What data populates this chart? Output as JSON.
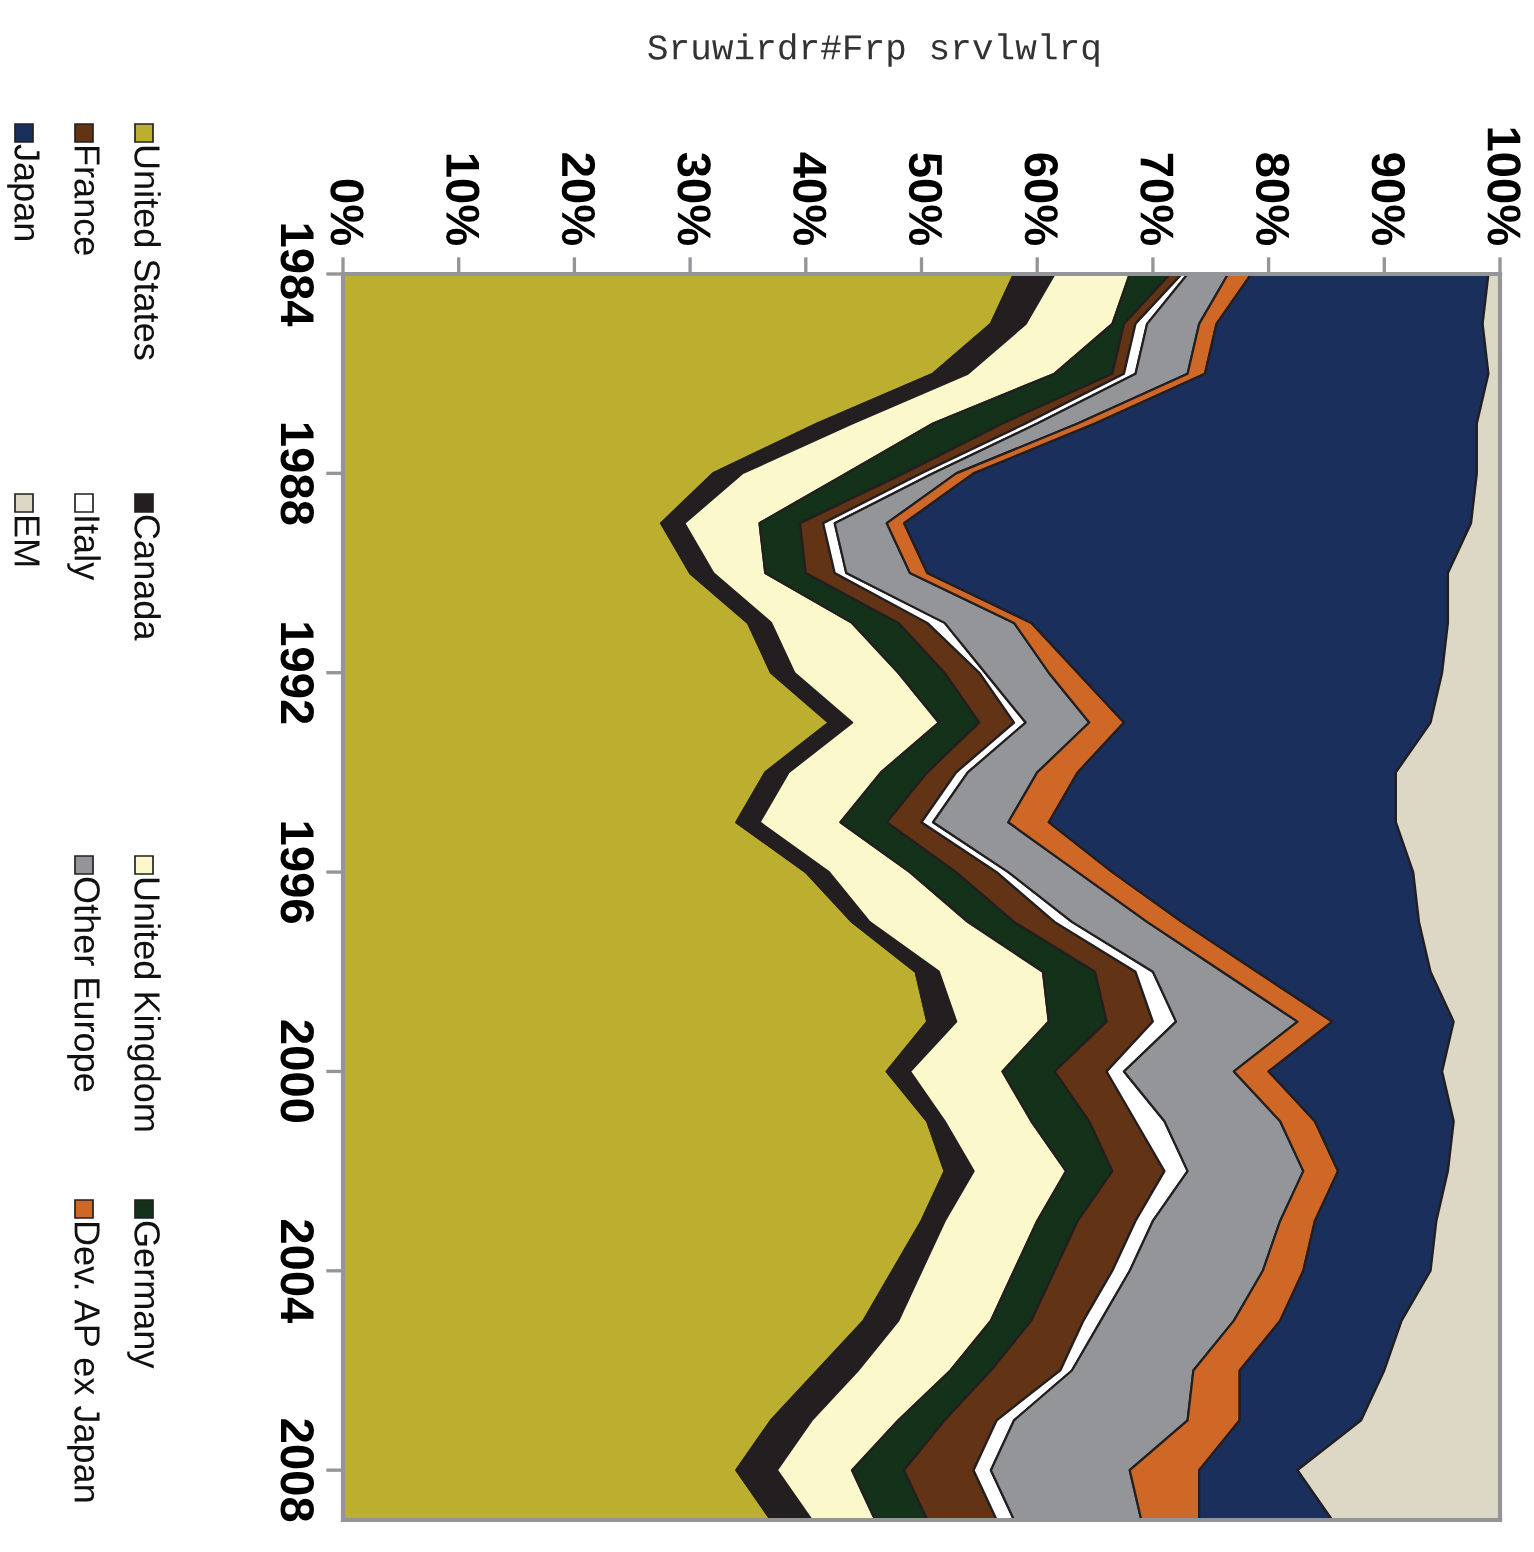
{
  "chart_data": {
    "type": "area",
    "title": "Sruwirdr#Frp srvlwlrq",
    "stacked": true,
    "orientation": "horizontal",
    "legend": "left",
    "grid": false,
    "categories": [
      "1984",
      null,
      null,
      null,
      "1988",
      null,
      null,
      null,
      "1992",
      null,
      null,
      null,
      "1996",
      null,
      null,
      null,
      "2000",
      null,
      null,
      null,
      "2004",
      null,
      null,
      null,
      "2008",
      null
    ],
    "xlim": [
      0,
      100
    ],
    "xticks": [
      {
        "value": 0,
        "label": "0%"
      },
      {
        "value": 10,
        "label": "10%"
      },
      {
        "value": 20,
        "label": "20%"
      },
      {
        "value": 30,
        "label": "30%"
      },
      {
        "value": 40,
        "label": "40%"
      },
      {
        "value": 50,
        "label": "50%"
      },
      {
        "value": 60,
        "label": "60%"
      },
      {
        "value": 70,
        "label": "70%"
      },
      {
        "value": 80,
        "label": "80%"
      },
      {
        "value": 90,
        "label": "90%"
      },
      {
        "value": 100,
        "label": "100%"
      }
    ],
    "series": [
      {
        "name": "United States",
        "color": "#bcaf2f",
        "values": [
          58,
          56,
          51,
          41,
          32,
          27.5,
          30,
          35,
          37,
          42,
          36.5,
          34,
          40,
          44,
          49.5,
          50.5,
          47,
          50.5,
          52,
          50,
          47.5,
          45,
          41,
          37,
          34,
          37
        ]
      },
      {
        "name": "Canada",
        "color": "#231f20",
        "values": [
          3.5,
          3,
          3,
          3,
          2.5,
          2,
          2,
          2,
          2,
          2,
          2,
          2,
          2,
          1.5,
          2,
          2.5,
          2,
          1.5,
          2.5,
          2,
          2.5,
          3,
          3.5,
          3.5,
          3.5,
          3.5
        ]
      },
      {
        "name": "United Kingdom",
        "color": "#fbf8cc",
        "values": [
          6.5,
          7.5,
          7.5,
          7,
          9,
          6.5,
          4.5,
          7,
          9,
          7.5,
          8,
          7,
          7,
          8.5,
          9,
          8,
          8,
          7.5,
          8,
          8,
          8,
          8,
          8,
          7.5,
          6.5,
          5.5
        ]
      },
      {
        "name": "Germany",
        "color": "#14321a",
        "values": [
          3.5,
          1,
          5,
          6,
          5,
          3.5,
          3.5,
          4,
          4,
          3.5,
          4,
          4,
          4,
          4,
          4.5,
          5,
          4.5,
          5,
          4,
          3.5,
          3.5,
          3.5,
          3.5,
          4,
          4.5,
          4.5
        ]
      },
      {
        "name": "France",
        "color": "#623314",
        "values": [
          1,
          1,
          1,
          2,
          1.5,
          2,
          2.5,
          2.5,
          3,
          3,
          2.5,
          3,
          3.5,
          3.5,
          3.5,
          4,
          4.5,
          4,
          4.5,
          5,
          5,
          4.5,
          6,
          4.5,
          6,
          6
        ]
      },
      {
        "name": "Italy",
        "color": "#ffffff",
        "values": [
          0.5,
          1,
          1,
          1,
          1,
          1,
          1,
          1.5,
          0.5,
          1,
          1,
          1,
          1,
          1.5,
          1.5,
          2,
          1.5,
          2.5,
          2,
          1.5,
          1.5,
          1.5,
          1,
          1.5,
          1.5,
          1.5
        ]
      },
      {
        "name": "Other Europe",
        "color": "#939598",
        "values": [
          3.5,
          4.5,
          4.5,
          3.5,
          2,
          4.5,
          5.5,
          6,
          5.5,
          5.5,
          6,
          6.5,
          6,
          6.5,
          6,
          10.5,
          9.5,
          10,
          10,
          11,
          11.5,
          11.5,
          10.5,
          15,
          12,
          11
        ]
      },
      {
        "name": "Dev. AP ex Japan",
        "color": "#cf6727",
        "values": [
          2,
          1.5,
          1.5,
          1.5,
          1.5,
          1.5,
          1.5,
          1.5,
          2.5,
          3,
          3.5,
          3.5,
          3,
          3,
          3,
          3,
          3,
          3,
          3,
          3,
          3.5,
          4,
          4,
          4.5,
          6,
          5
        ]
      },
      {
        "name": "Japan",
        "color": "#1a2f5b",
        "values": [
          20.5,
          23,
          24.5,
          33,
          43.5,
          49,
          45,
          36,
          31.5,
          26.5,
          27.5,
          30,
          26,
          20.5,
          15,
          10.5,
          15,
          12,
          9.5,
          10.5,
          11,
          10.5,
          12.5,
          10.5,
          8.5,
          11.5
        ]
      },
      {
        "name": "EM",
        "color": "#ddd8c6",
        "values": [
          1,
          1.5,
          1,
          2,
          2,
          2.5,
          4.5,
          4.5,
          5,
          6,
          9,
          9,
          7.5,
          7,
          6,
          4,
          5,
          4,
          4.5,
          5.5,
          6,
          8.5,
          10,
          12,
          17.5,
          14.5
        ]
      }
    ]
  }
}
